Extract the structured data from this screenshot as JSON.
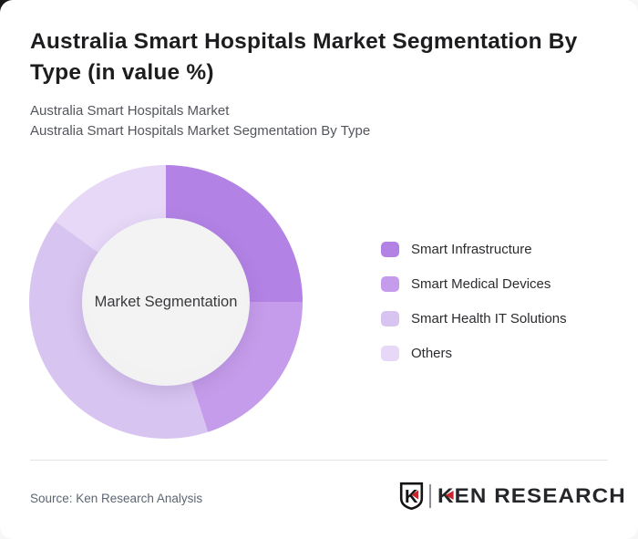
{
  "header": {
    "title": "Australia Smart Hospitals Market Segmentation By Type (in value %)",
    "subtitle_line1": "Australia Smart Hospitals Market",
    "subtitle_line2": "Australia Smart Hospitals Market Segmentation By Type"
  },
  "chart_data": {
    "type": "pie",
    "variant": "donut",
    "title": "Australia Smart Hospitals Market Segmentation By Type (in value %)",
    "center_label": "Market Segmentation",
    "categories": [
      "Smart Infrastructure",
      "Smart Medical Devices",
      "Smart Health IT Solutions",
      "Others"
    ],
    "values": [
      25,
      20,
      40,
      15
    ],
    "unit": "%",
    "total": 100,
    "colors": [
      "#b282e4",
      "#c59ceb",
      "#d8c4f0",
      "#e7d8f7"
    ],
    "start_angle_deg": 0,
    "direction": "clockwise",
    "legend_position": "right"
  },
  "footer": {
    "source": "Source: Ken Research Analysis",
    "logo_monogram": "K",
    "logo_text": "KEN RESEARCH",
    "logo_red": "#c8262c",
    "logo_dark": "#141414"
  }
}
